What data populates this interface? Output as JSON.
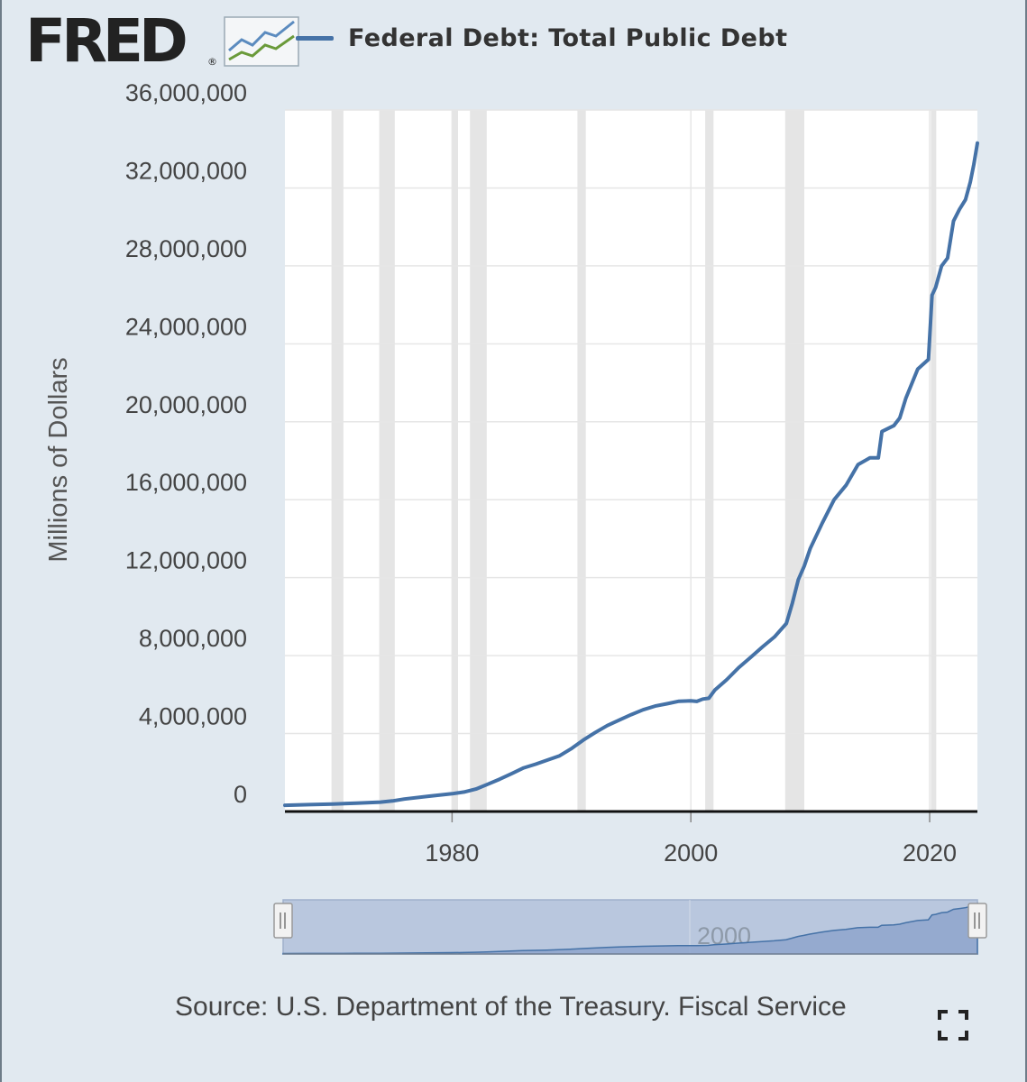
{
  "logo": {
    "text": "FRED",
    "reg": "®"
  },
  "legend": {
    "label": "Federal Debt: Total Public Debt",
    "color": "#4572a7"
  },
  "source": "Source: U.S. Department of the Treasury. Fiscal Service",
  "icons": {
    "logo_mark": "line-chart-icon",
    "fullscreen": "fullscreen-icon"
  },
  "colors": {
    "line": "#4572a7",
    "background": "#e1e9f0",
    "plot": "#ffffff",
    "recession": "#e5e5e5",
    "navigator_fill": "#b9c7de"
  },
  "chart_data": {
    "type": "line",
    "title": "Federal Debt: Total Public Debt",
    "ylabel": "Millions of Dollars",
    "xlabel": "",
    "xlim": [
      1966.0,
      2024.0
    ],
    "ylim": [
      0,
      36000000
    ],
    "yticks": [
      0,
      4000000,
      8000000,
      12000000,
      16000000,
      20000000,
      24000000,
      28000000,
      32000000,
      36000000
    ],
    "ytick_labels": [
      "0",
      "4,000,000",
      "8,000,000",
      "12,000,000",
      "16,000,000",
      "20,000,000",
      "24,000,000",
      "28,000,000",
      "32,000,000",
      "36,000,000"
    ],
    "xticks": [
      1980,
      2000,
      2020
    ],
    "xtick_labels": [
      "1980",
      "2000",
      "2020"
    ],
    "grid": true,
    "recessions": [
      [
        1969.9,
        1970.9
      ],
      [
        1973.9,
        1975.2
      ],
      [
        1980.0,
        1980.5
      ],
      [
        1981.5,
        1982.9
      ],
      [
        1990.5,
        1991.2
      ],
      [
        2001.2,
        2001.9
      ],
      [
        2007.9,
        2009.5
      ],
      [
        2020.1,
        2020.4
      ]
    ],
    "series": [
      {
        "name": "Federal Debt: Total Public Debt",
        "x": [
          1966,
          1968,
          1970,
          1972,
          1974,
          1975,
          1976,
          1978,
          1980,
          1981,
          1982,
          1983,
          1984,
          1985,
          1986,
          1987,
          1988,
          1989,
          1990,
          1991,
          1992,
          1993,
          1994,
          1995,
          1996,
          1997,
          1998,
          1999,
          2000,
          2000.5,
          2001,
          2001.5,
          2002,
          2003,
          2004,
          2005,
          2006,
          2007,
          2008,
          2008.5,
          2009,
          2009.5,
          2010,
          2011,
          2012,
          2013,
          2014,
          2015,
          2015.7,
          2016,
          2017,
          2017.5,
          2018,
          2019,
          2019.9,
          2020.2,
          2020.5,
          2021,
          2021.5,
          2022,
          2022.5,
          2023,
          2023.4,
          2023.7,
          2024
        ],
        "y": [
          320000,
          350000,
          380000,
          430000,
          480000,
          540000,
          640000,
          780000,
          910000,
          1000000,
          1150000,
          1400000,
          1660000,
          1950000,
          2240000,
          2430000,
          2640000,
          2860000,
          3230000,
          3670000,
          4060000,
          4410000,
          4690000,
          4970000,
          5220000,
          5410000,
          5530000,
          5660000,
          5680000,
          5650000,
          5770000,
          5810000,
          6230000,
          6760000,
          7380000,
          7910000,
          8450000,
          8960000,
          9650000,
          10700000,
          11900000,
          12600000,
          13500000,
          14800000,
          16000000,
          16740000,
          17800000,
          18150000,
          18150000,
          19500000,
          19800000,
          20200000,
          21200000,
          22700000,
          23200000,
          26500000,
          26900000,
          28000000,
          28400000,
          30300000,
          30900000,
          31400000,
          32300000,
          33200000,
          34300000
        ]
      }
    ],
    "navigator": {
      "range": [
        1966.0,
        2024.0
      ],
      "tick_labels": [
        "2000"
      ]
    }
  }
}
